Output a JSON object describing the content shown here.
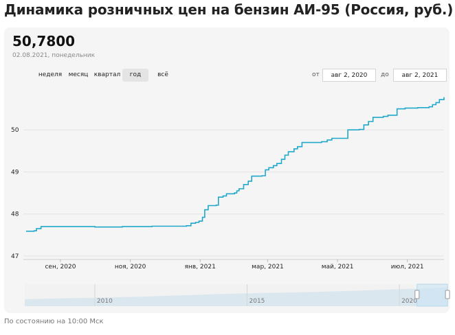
{
  "title": "Динамика розничных цен на бензин АИ-95 (Россия, руб.)",
  "current": {
    "value": "50,7800",
    "date": "02.08.2021, понедельник"
  },
  "periods": [
    {
      "label": "неделя"
    },
    {
      "label": "месяц"
    },
    {
      "label": "квартал"
    },
    {
      "label": "год",
      "active": true
    },
    {
      "label": "всё"
    }
  ],
  "range": {
    "from_label": "от",
    "from_value": "авг 2, 2020",
    "to_label": "до",
    "to_value": "авг 2, 2021"
  },
  "footer": "По состоянию на 10:00 Мск",
  "colors": {
    "line": "#1fa8c9",
    "navigator_fill": "#dbe7ef",
    "navigator_selection": "#c9e6f3"
  },
  "chart_data": {
    "type": "line",
    "title": "Динамика розничных цен на бензин АИ-95 (Россия, руб.)",
    "xlabel": "",
    "ylabel": "",
    "xlim": [
      "2020-08-02",
      "2021-08-02"
    ],
    "ylim": [
      46.95,
      51.0
    ],
    "y_ticks": [
      {
        "value": 47,
        "label": "47"
      },
      {
        "value": 48,
        "label": "48"
      },
      {
        "value": 49,
        "label": "49"
      },
      {
        "value": 50,
        "label": "50"
      }
    ],
    "x_ticks": [
      {
        "value": "2020-09-01",
        "label": "сен, 2020"
      },
      {
        "value": "2020-11-01",
        "label": "ноя, 2020"
      },
      {
        "value": "2021-01-01",
        "label": "янв, 2021"
      },
      {
        "value": "2021-03-01",
        "label": "мар, 2021"
      },
      {
        "value": "2021-05-01",
        "label": "май, 2021"
      },
      {
        "value": "2021-07-01",
        "label": "июл, 2021"
      }
    ],
    "grid": true,
    "series": [
      {
        "points": [
          [
            "2020-08-02",
            47.59
          ],
          [
            "2020-08-09",
            47.6
          ],
          [
            "2020-08-11",
            47.65
          ],
          [
            "2020-08-15",
            47.7
          ],
          [
            "2020-09-15",
            47.7
          ],
          [
            "2020-10-01",
            47.69
          ],
          [
            "2020-10-25",
            47.7
          ],
          [
            "2020-11-20",
            47.71
          ],
          [
            "2020-12-20",
            47.72
          ],
          [
            "2020-12-24",
            47.78
          ],
          [
            "2020-12-28",
            47.8
          ],
          [
            "2020-12-31",
            47.83
          ],
          [
            "2021-01-03",
            47.92
          ],
          [
            "2021-01-05",
            48.1
          ],
          [
            "2021-01-08",
            48.2
          ],
          [
            "2021-01-15",
            48.21
          ],
          [
            "2021-01-17",
            48.4
          ],
          [
            "2021-01-21",
            48.43
          ],
          [
            "2021-01-24",
            48.48
          ],
          [
            "2021-01-31",
            48.5
          ],
          [
            "2021-02-02",
            48.55
          ],
          [
            "2021-02-04",
            48.6
          ],
          [
            "2021-02-08",
            48.7
          ],
          [
            "2021-02-12",
            48.78
          ],
          [
            "2021-02-15",
            48.9
          ],
          [
            "2021-02-24",
            48.91
          ],
          [
            "2021-02-27",
            49.05
          ],
          [
            "2021-03-02",
            49.1
          ],
          [
            "2021-03-06",
            49.15
          ],
          [
            "2021-03-09",
            49.2
          ],
          [
            "2021-03-13",
            49.3
          ],
          [
            "2021-03-16",
            49.4
          ],
          [
            "2021-03-19",
            49.48
          ],
          [
            "2021-03-24",
            49.55
          ],
          [
            "2021-03-27",
            49.6
          ],
          [
            "2021-03-31",
            49.7
          ],
          [
            "2021-04-08",
            49.7
          ],
          [
            "2021-04-17",
            49.72
          ],
          [
            "2021-04-22",
            49.76
          ],
          [
            "2021-04-26",
            49.8
          ],
          [
            "2021-05-07",
            49.8
          ],
          [
            "2021-05-10",
            50.0
          ],
          [
            "2021-05-20",
            50.01
          ],
          [
            "2021-05-24",
            50.12
          ],
          [
            "2021-05-28",
            50.2
          ],
          [
            "2021-06-01",
            50.3
          ],
          [
            "2021-06-10",
            50.32
          ],
          [
            "2021-06-14",
            50.35
          ],
          [
            "2021-06-22",
            50.5
          ],
          [
            "2021-06-29",
            50.52
          ],
          [
            "2021-07-10",
            50.53
          ],
          [
            "2021-07-20",
            50.55
          ],
          [
            "2021-07-23",
            50.6
          ],
          [
            "2021-07-26",
            50.65
          ],
          [
            "2021-07-29",
            50.72
          ],
          [
            "2021-08-02",
            50.78
          ]
        ]
      }
    ],
    "navigator": {
      "x_ticks": [
        {
          "year": 2010,
          "label": "2010"
        },
        {
          "year": 2015,
          "label": "2015"
        },
        {
          "year": 2020,
          "label": "2020"
        }
      ],
      "xlim": [
        2007.7,
        2021.6
      ],
      "series": [
        [
          2007.7,
          19.0
        ],
        [
          2009.0,
          21.5
        ],
        [
          2010.0,
          23.0
        ],
        [
          2011.5,
          26.0
        ],
        [
          2013.0,
          30.0
        ],
        [
          2014.0,
          33.0
        ],
        [
          2015.5,
          36.0
        ],
        [
          2017.0,
          38.5
        ],
        [
          2018.5,
          42.0
        ],
        [
          2020.0,
          46.5
        ],
        [
          2021.6,
          50.78
        ]
      ],
      "ylim": [
        0,
        60
      ],
      "selection": [
        2020.58,
        2021.58
      ]
    }
  }
}
